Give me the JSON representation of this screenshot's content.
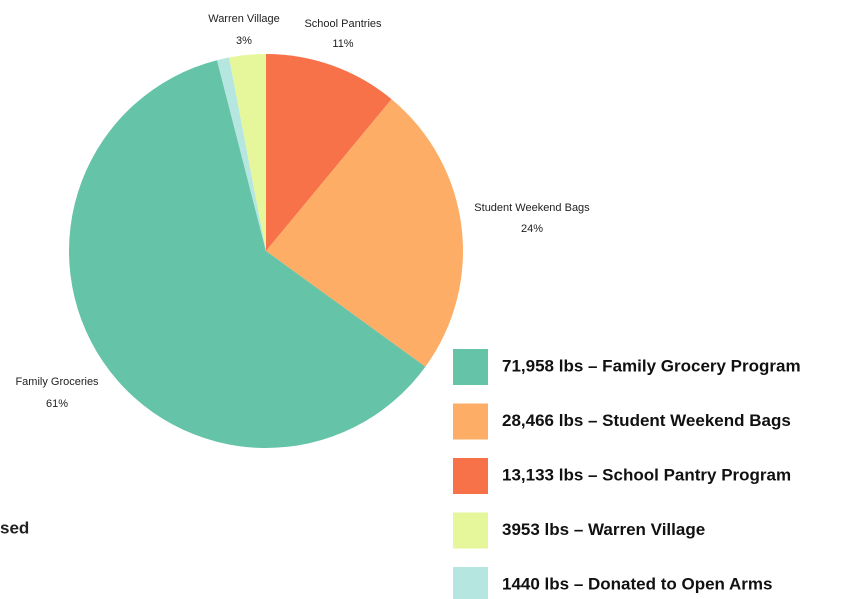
{
  "chart_data": {
    "type": "pie",
    "categories": [
      "School Pantries",
      "Student Weekend Bags",
      "Family Groceries",
      null,
      "Warren Village"
    ],
    "values": [
      11,
      24,
      61,
      1,
      3
    ],
    "value_labels": [
      "11%",
      "24%",
      "61%",
      null,
      "3%"
    ],
    "colors": [
      "#f77249",
      "#fead66",
      "#65c3a8",
      "#b5e6df",
      "#e6f79b"
    ],
    "legend": [
      "71,958 lbs – Family Grocery Program",
      "28,466 lbs – Student Weekend Bags",
      "13,133 lbs – School Pantry Program",
      "3953 lbs – Warren Village",
      "1440 lbs – Donated to Open Arms"
    ],
    "legend_colors": [
      "#65c3a8",
      "#fead66",
      "#f77249",
      "#e6f79b",
      "#b5e6df"
    ]
  },
  "fragment": "sed"
}
